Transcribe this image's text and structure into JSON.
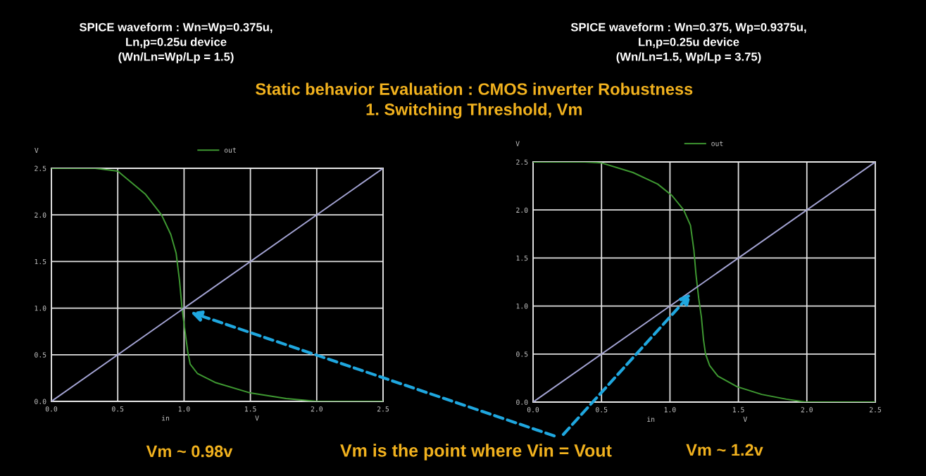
{
  "chart_data": [
    {
      "type": "line",
      "title": "SPICE waveform : Wn=Wp=0.375u,\nLn,p=0.25u device\n(Wn/Ln=Wp/Lp = 1.5)",
      "xlabel": "in",
      "ylabel": "V",
      "annotations": [
        "V",
        "Vm ~ 0.98v"
      ],
      "series": [
        {
          "name": "out",
          "color": "#3f9a32",
          "x": [
            0,
            0.33,
            0.5,
            0.71,
            0.83,
            0.9,
            0.94,
            0.966,
            0.984,
            1.0,
            1.028,
            1.046,
            1.1,
            1.24,
            1.5,
            1.77,
            2.0,
            2.5
          ],
          "values": [
            2.5,
            2.5,
            2.47,
            2.22,
            2.0,
            1.79,
            1.59,
            1.29,
            1.01,
            0.83,
            0.53,
            0.4,
            0.3,
            0.2,
            0.09,
            0.03,
            0,
            0
          ]
        },
        {
          "color": "#a4a4d4",
          "x": [
            0,
            2.5
          ],
          "values": [
            0,
            2.5
          ]
        }
      ],
      "xlim": [
        0,
        2.5
      ],
      "ylim": [
        0,
        2.5
      ],
      "xticks": [
        {
          "value": 0,
          "label": "0.0"
        },
        0.5,
        {
          "value": 1,
          "label": "1.0"
        },
        1.5,
        {
          "value": 2,
          "label": "2.0"
        },
        2.5
      ],
      "yticks": [
        {
          "value": 0,
          "label": "0.0"
        },
        0.5,
        {
          "value": 1,
          "label": "1.0"
        },
        1.5,
        {
          "value": 2,
          "label": "2.0"
        },
        2.5
      ],
      "grid": true,
      "legend": "top"
    },
    {
      "type": "line",
      "title": "SPICE waveform : Wn=0.375, Wp=0.9375u,\nLn,p=0.25u device\n(Wn/Ln=1.5, Wp/Lp = 3.75)",
      "xlabel": "in",
      "ylabel": "V",
      "annotations": [
        "V",
        "Vm ~ 1.2v"
      ],
      "series": [
        {
          "name": "out",
          "color": "#3f9a32",
          "x": [
            0,
            0.38,
            0.5,
            0.73,
            0.91,
            1.015,
            1.1,
            1.15,
            1.175,
            1.19,
            1.21,
            1.23,
            1.245,
            1.26,
            1.29,
            1.35,
            1.49,
            1.67,
            1.85,
            1.99,
            2.5
          ],
          "values": [
            2.5,
            2.5,
            2.49,
            2.39,
            2.27,
            2.15,
            2.0,
            1.84,
            1.58,
            1.33,
            1.08,
            0.88,
            0.65,
            0.5,
            0.38,
            0.27,
            0.16,
            0.08,
            0.03,
            0,
            0
          ]
        },
        {
          "color": "#a4a4d4",
          "x": [
            0,
            2.5
          ],
          "values": [
            0,
            2.5
          ]
        }
      ],
      "xlim": [
        0,
        2.5
      ],
      "ylim": [
        0,
        2.5
      ],
      "xticks": [
        {
          "value": 0,
          "label": "0.0"
        },
        0.5,
        {
          "value": 1,
          "label": "1.0"
        },
        1.5,
        {
          "value": 2,
          "label": "2.0"
        },
        2.5
      ],
      "yticks": [
        {
          "value": 0,
          "label": "0.0"
        },
        0.5,
        {
          "value": 1,
          "label": "1.0"
        },
        1.5,
        {
          "value": 2,
          "label": "2.0"
        },
        2.5
      ],
      "grid": true,
      "legend": "top"
    },
    {
      "type": "other",
      "title": "Static behavior Evaluation : CMOS inverter Robustness\n1. Switching Threshold, Vm",
      "annotations": [
        "Vm is the point where Vin = Vout"
      ]
    }
  ]
}
